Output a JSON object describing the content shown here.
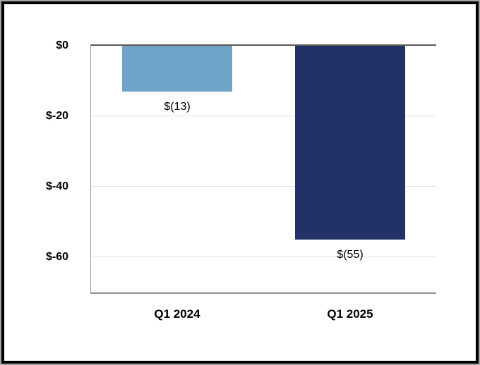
{
  "chart_data": {
    "type": "bar",
    "title": "",
    "xlabel": "",
    "ylabel": "",
    "categories": [
      "Q1 2024",
      "Q1 2025"
    ],
    "values": [
      -13,
      -55
    ],
    "bar_labels": [
      "$(13)",
      "$(55)"
    ],
    "bar_colors": [
      "#6FA3C7",
      "#223166"
    ],
    "ylim": [
      0,
      -70
    ],
    "yticks": [
      {
        "label": "$0",
        "value": 0
      },
      {
        "label": "$-20",
        "value": -20
      },
      {
        "label": "$-40",
        "value": -40
      },
      {
        "label": "$-60",
        "value": -60
      }
    ],
    "grid": true,
    "legend": false,
    "annotations": []
  },
  "colors": {
    "zero_line": "#595959",
    "axis_line": "#919191",
    "y_axis_line": "#a0a0a0",
    "gridline": "#e2e2e2",
    "frame_border": "#000000",
    "frame_rim": "#a3a3a3",
    "background": "#ffffff"
  }
}
